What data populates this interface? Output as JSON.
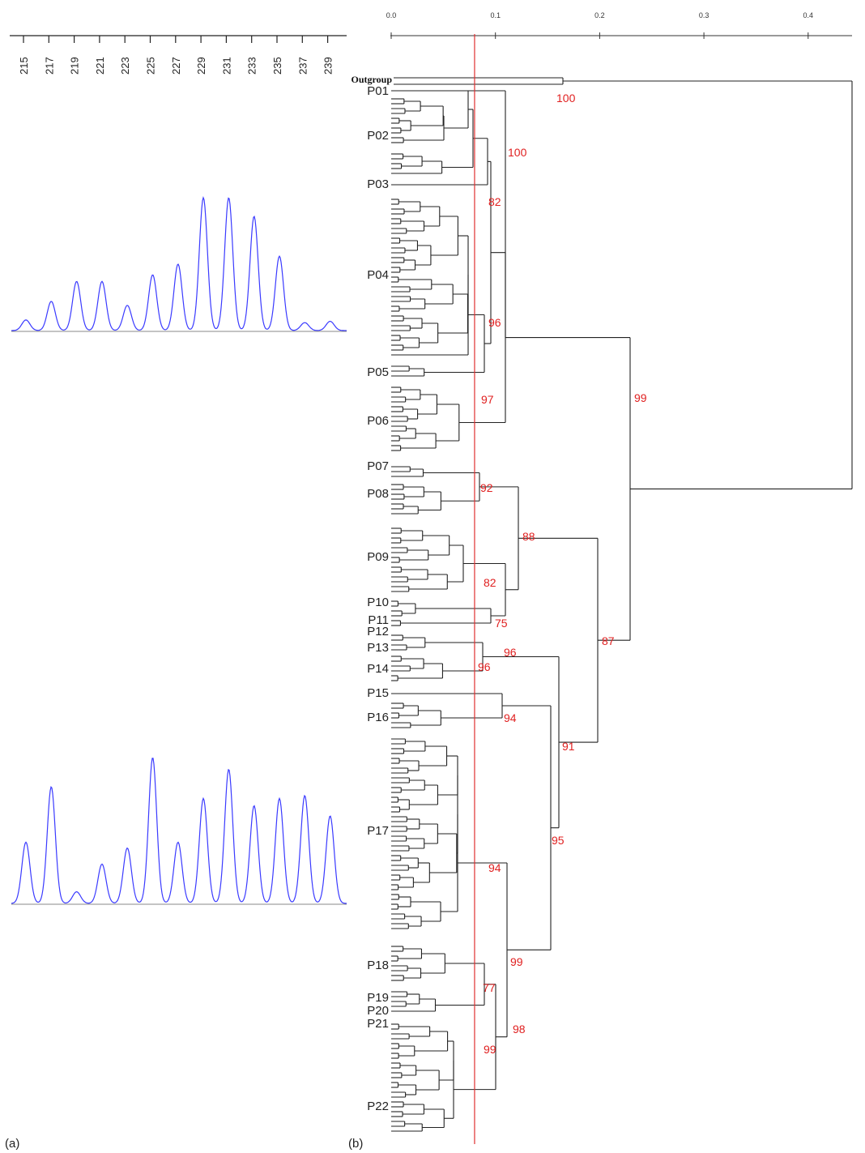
{
  "colors": {
    "trace": "#3a3aff",
    "bootstrap": "#e02020",
    "cutoff": "#e03030",
    "tree": "#222222"
  },
  "panel_a": {
    "label": "(a)",
    "size_ticks": [
      "215",
      "217",
      "219",
      "221",
      "223",
      "225",
      "227",
      "229",
      "231",
      "233",
      "235",
      "237",
      "239"
    ],
    "trace_top": [
      0.08,
      0.22,
      0.37,
      0.37,
      0.19,
      0.42,
      0.5,
      1.0,
      1.0,
      0.86,
      0.56,
      0.06,
      0.07
    ],
    "trace_bottom": [
      0.42,
      0.8,
      0.08,
      0.27,
      0.38,
      1.0,
      0.42,
      0.72,
      0.92,
      0.67,
      0.72,
      0.74,
      0.6
    ]
  },
  "panel_b": {
    "label": "(b)",
    "scale_ticks": [
      {
        "value": 0.0,
        "label": "0.0"
      },
      {
        "value": 0.1,
        "label": "0.1"
      },
      {
        "value": 0.2,
        "label": "0.2"
      },
      {
        "value": 0.3,
        "label": "0.3"
      },
      {
        "value": 0.4,
        "label": "0.4"
      }
    ],
    "cutoff_distance": 0.08,
    "outgroup": "Outgroup",
    "populations": [
      "P01",
      "P02",
      "P03",
      "P04",
      "P05",
      "P06",
      "P07",
      "P08",
      "P09",
      "P10",
      "P11",
      "P12",
      "P13",
      "P14",
      "P15",
      "P16",
      "P17",
      "P18",
      "P19",
      "P20",
      "P21",
      "P22"
    ],
    "bootstrap_values": [
      "100",
      "100",
      "82",
      "96",
      "97",
      "99",
      "92",
      "88",
      "82",
      "75",
      "87",
      "96",
      "96",
      "94",
      "91",
      "95",
      "94",
      "99",
      "77",
      "98",
      "99"
    ]
  }
}
